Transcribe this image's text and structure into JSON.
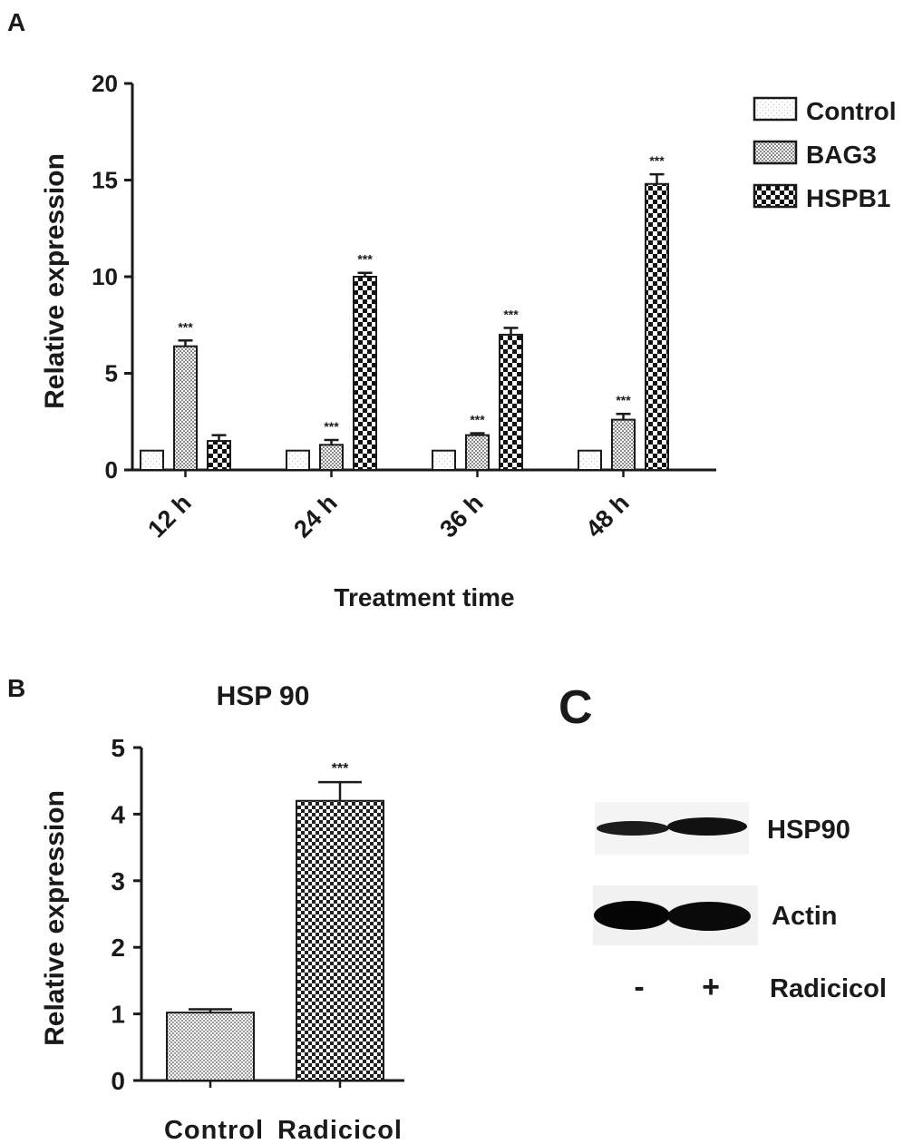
{
  "panels": {
    "a": "A",
    "b": "B",
    "c": "C"
  },
  "chart_data": [
    {
      "type": "bar",
      "panel": "A",
      "title": "",
      "xlabel": "Treatment time",
      "ylabel": "Relative expression",
      "ylim": [
        0,
        20
      ],
      "yticks": [
        "0",
        "5",
        "10",
        "15",
        "20"
      ],
      "categories": [
        "12 h",
        "24 h",
        "36 h",
        "48 h"
      ],
      "legend_position": "right",
      "significance_mark": "***",
      "series": [
        {
          "name": "Control",
          "values": [
            1.0,
            1.0,
            1.0,
            1.0
          ],
          "errors": [
            0,
            0,
            0,
            0
          ],
          "sig": [
            false,
            false,
            false,
            false
          ]
        },
        {
          "name": "BAG3",
          "values": [
            6.4,
            1.3,
            1.8,
            2.6
          ],
          "errors": [
            0.3,
            0.25,
            0.1,
            0.3
          ],
          "sig": [
            true,
            true,
            true,
            true
          ]
        },
        {
          "name": "HSPB1",
          "values": [
            1.5,
            10.0,
            7.0,
            14.8
          ],
          "errors": [
            0.3,
            0.2,
            0.35,
            0.5
          ],
          "sig": [
            false,
            true,
            true,
            true
          ]
        }
      ]
    },
    {
      "type": "bar",
      "panel": "B",
      "title": "HSP 90",
      "xlabel": "",
      "ylabel": "Relative expression",
      "ylim": [
        0,
        5
      ],
      "yticks": [
        "0",
        "1",
        "2",
        "3",
        "4",
        "5"
      ],
      "categories": [
        "Control",
        "Radicicol"
      ],
      "values": [
        1.02,
        4.2
      ],
      "errors": [
        0.05,
        0.28
      ],
      "significance_mark": "***",
      "sig": [
        false,
        true
      ]
    }
  ],
  "blot": {
    "rows": [
      "HSP90",
      "Actin"
    ],
    "lanes": [
      "-",
      "+"
    ],
    "treatment_label": "Radicicol"
  }
}
